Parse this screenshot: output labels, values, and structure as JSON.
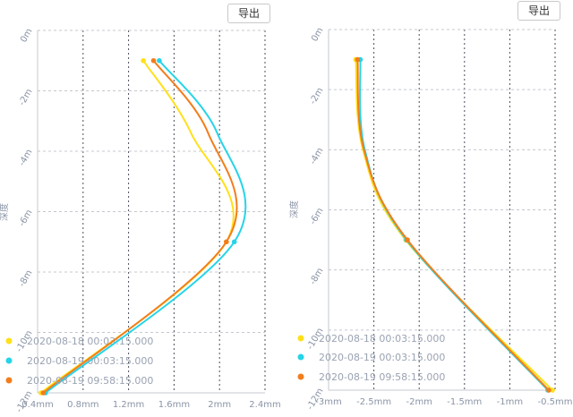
{
  "export_label": "导出",
  "chart_data": [
    {
      "type": "line",
      "ylabel": "深度",
      "xlim": [
        0.4,
        2.4
      ],
      "ylim": [
        -12,
        0
      ],
      "x_ticks": [
        {
          "value": 0.4,
          "label": "0.4mm"
        },
        {
          "value": 0.8,
          "label": "0.8mm"
        },
        {
          "value": 1.2,
          "label": "1.2mm"
        },
        {
          "value": 1.6,
          "label": "1.6mm"
        },
        {
          "value": 2.0,
          "label": "2mm"
        },
        {
          "value": 2.4,
          "label": "2.4mm"
        }
      ],
      "y_ticks": [
        {
          "value": 0,
          "label": "0m"
        },
        {
          "value": -2,
          "label": "-2m"
        },
        {
          "value": -4,
          "label": "-4m"
        },
        {
          "value": -6,
          "label": "-6m"
        },
        {
          "value": -8,
          "label": "-8m"
        },
        {
          "value": -10,
          "label": "-10m"
        },
        {
          "value": -12,
          "label": "-12m"
        }
      ],
      "series": [
        {
          "name": "2020-08-18 00:03:15.000",
          "color": "#ffe01a",
          "points": [
            [
              1.33,
              -1
            ],
            [
              1.75,
              -3.4
            ],
            [
              2.06,
              -7
            ],
            [
              0.43,
              -12
            ]
          ]
        },
        {
          "name": "2020-08-19 00:03:15.000",
          "color": "#26d4e8",
          "points": [
            [
              1.47,
              -1
            ],
            [
              1.98,
              -3.4
            ],
            [
              2.13,
              -7
            ],
            [
              0.47,
              -12
            ]
          ]
        },
        {
          "name": "2020-08-19 09:58:15.000",
          "color": "#f27d1c",
          "points": [
            [
              1.42,
              -1
            ],
            [
              1.9,
              -3.4
            ],
            [
              2.06,
              -7
            ],
            [
              0.45,
              -12
            ]
          ]
        }
      ]
    },
    {
      "type": "line",
      "ylabel": "深度",
      "xlim": [
        -3,
        -0.5
      ],
      "ylim": [
        -12,
        0
      ],
      "x_ticks": [
        {
          "value": -3,
          "label": "-3mm"
        },
        {
          "value": -2.5,
          "label": "-2.5mm"
        },
        {
          "value": -2,
          "label": "-2mm"
        },
        {
          "value": -1.5,
          "label": "-1.5mm"
        },
        {
          "value": -1,
          "label": "-1mm"
        },
        {
          "value": -0.5,
          "label": "-0.5mm"
        }
      ],
      "y_ticks": [
        {
          "value": 0,
          "label": "0m"
        },
        {
          "value": -2,
          "label": "-2m"
        },
        {
          "value": -4,
          "label": "-4m"
        },
        {
          "value": -6,
          "label": "-6m"
        },
        {
          "value": -8,
          "label": "-8m"
        },
        {
          "value": -10,
          "label": "-10m"
        },
        {
          "value": -12,
          "label": "-12m"
        }
      ],
      "series": [
        {
          "name": "2020-08-18 00:03:15.000",
          "color": "#ffe01a",
          "points": [
            [
              -2.7,
              -1
            ],
            [
              -2.62,
              -4
            ],
            [
              -2.15,
              -7
            ],
            [
              -0.53,
              -12
            ]
          ]
        },
        {
          "name": "2020-08-19 00:03:15.000",
          "color": "#26d4e8",
          "points": [
            [
              -2.65,
              -1
            ],
            [
              -2.6,
              -4
            ],
            [
              -2.14,
              -7
            ],
            [
              -0.58,
              -12
            ]
          ]
        },
        {
          "name": "2020-08-19 09:58:15.000",
          "color": "#f27d1c",
          "points": [
            [
              -2.68,
              -1
            ],
            [
              -2.61,
              -4
            ],
            [
              -2.13,
              -7
            ],
            [
              -0.57,
              -12
            ]
          ]
        }
      ]
    }
  ]
}
